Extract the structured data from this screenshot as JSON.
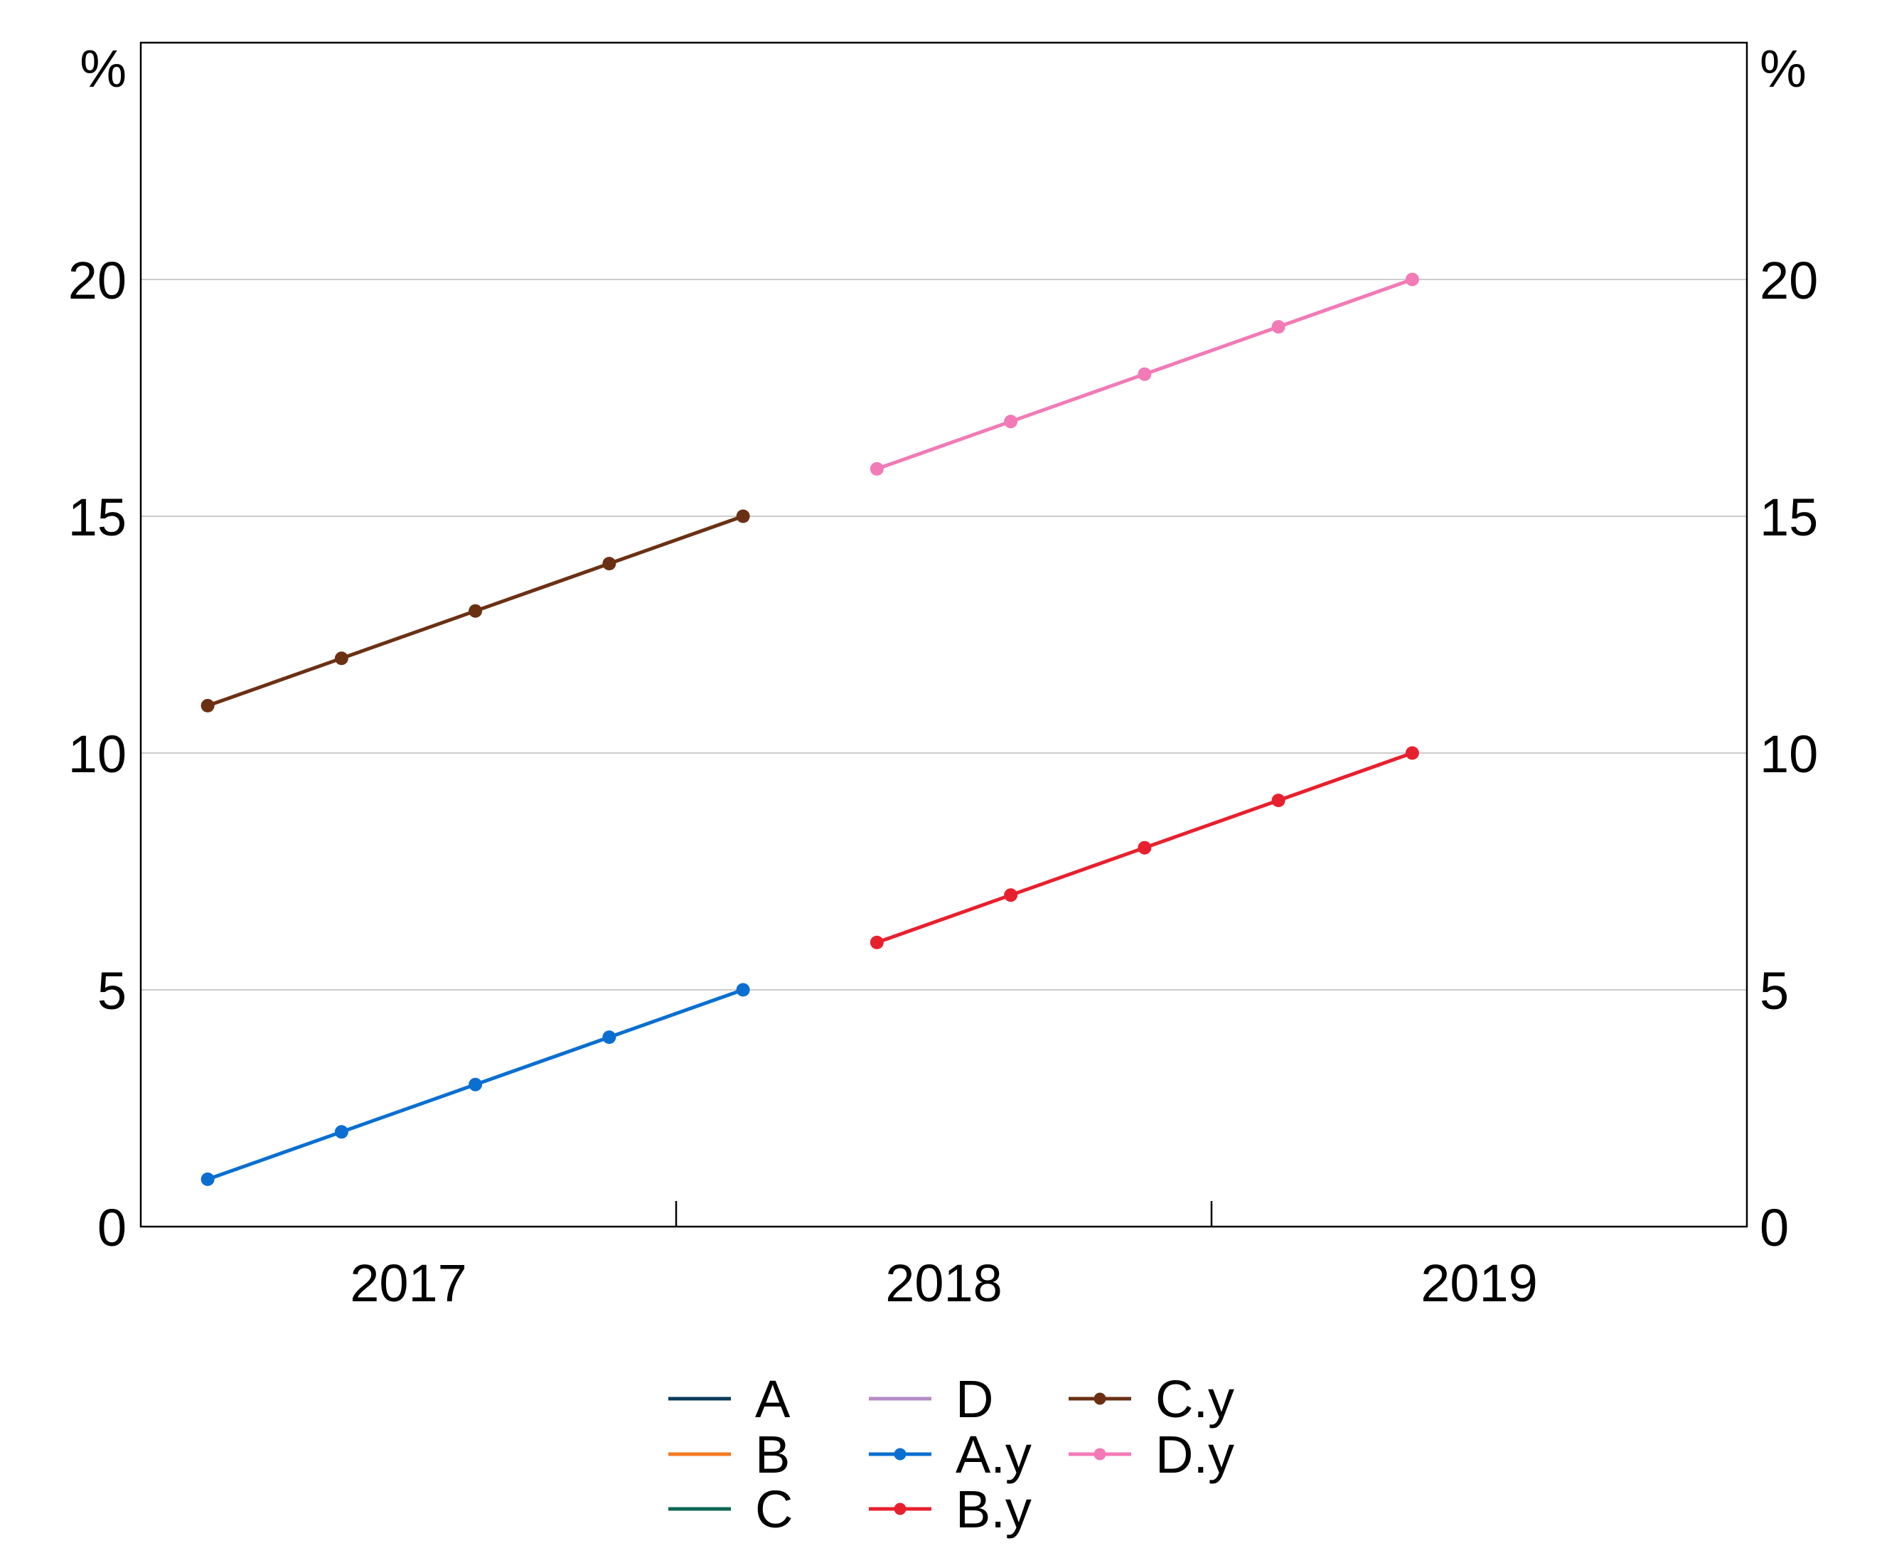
{
  "chart_data": {
    "type": "line",
    "left_axis": {
      "unit": "%",
      "ylim": [
        0,
        25
      ],
      "ticks": [
        0,
        5,
        10,
        15,
        20
      ]
    },
    "right_axis": {
      "unit": "%",
      "ylim": [
        0,
        25
      ],
      "ticks": [
        0,
        5,
        10,
        15,
        20
      ]
    },
    "x_axis": {
      "xlim": [
        2016.5,
        2019.5
      ],
      "labels": [
        "2017",
        "2018",
        "2019"
      ],
      "label_positions": [
        2017,
        2018,
        2019
      ],
      "year_boundaries": [
        2017.5,
        2018.5
      ]
    },
    "grid": {
      "horizontal": true,
      "color": "#cccccc"
    },
    "legend_position": "bottom",
    "series": [
      {
        "name": "A",
        "color": "#0b3c5d",
        "marker": false,
        "points": []
      },
      {
        "name": "B",
        "color": "#f47a20",
        "marker": false,
        "points": []
      },
      {
        "name": "C",
        "color": "#0e6655",
        "marker": false,
        "points": []
      },
      {
        "name": "D",
        "color": "#b48ac4",
        "marker": false,
        "points": []
      },
      {
        "name": "A.y",
        "color": "#0a6fd1",
        "marker": true,
        "points": [
          [
            2016.625,
            1
          ],
          [
            2016.875,
            2
          ],
          [
            2017.125,
            3
          ],
          [
            2017.375,
            4
          ],
          [
            2017.625,
            5
          ]
        ]
      },
      {
        "name": "B.y",
        "color": "#e8202e",
        "marker": true,
        "points": [
          [
            2017.875,
            6
          ],
          [
            2018.125,
            7
          ],
          [
            2018.375,
            8
          ],
          [
            2018.625,
            9
          ],
          [
            2018.875,
            10
          ]
        ]
      },
      {
        "name": "C.y",
        "color": "#6b3014",
        "marker": true,
        "points": [
          [
            2016.625,
            11
          ],
          [
            2016.875,
            12
          ],
          [
            2017.125,
            13
          ],
          [
            2017.375,
            14
          ],
          [
            2017.625,
            15
          ]
        ]
      },
      {
        "name": "D.y",
        "color": "#f27ab6",
        "marker": true,
        "points": [
          [
            2017.875,
            16
          ],
          [
            2018.125,
            17
          ],
          [
            2018.375,
            18
          ],
          [
            2018.625,
            19
          ],
          [
            2018.875,
            20
          ]
        ]
      }
    ]
  }
}
